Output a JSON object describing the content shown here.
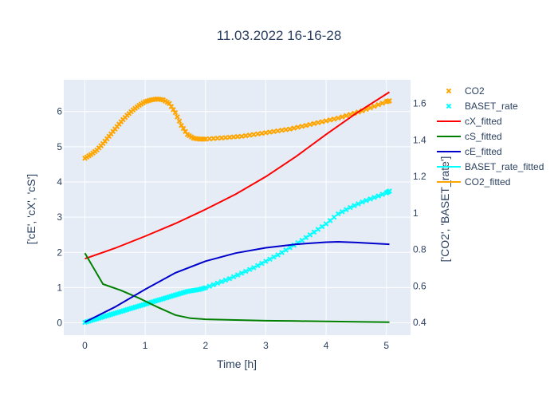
{
  "chart_data": {
    "type": "line",
    "title": "11.03.2022 16-16-28",
    "xlabel": "Time [h]",
    "ylabel_left": "['cE', 'cX', 'cS']",
    "ylabel_right": "['CO2', 'BASET_rate']",
    "xlim": [
      -0.35,
      5.4
    ],
    "ylim_left": [
      -0.35,
      6.9
    ],
    "ylim_right": [
      0.33,
      1.73
    ],
    "x_ticks": [
      0,
      1,
      2,
      3,
      4,
      5
    ],
    "y_left_ticks": [
      0,
      1,
      2,
      3,
      4,
      5,
      6
    ],
    "y_right_ticks": [
      0.4,
      0.6,
      0.8,
      1.0,
      1.2,
      1.4,
      1.6
    ],
    "y_right_tick_labels": [
      "0.4",
      "0.6",
      "0.8",
      "1",
      "1.2",
      "1.4",
      "1.6"
    ],
    "grid": true,
    "plot_bgcolor": "#e5ecf6",
    "legend_position": "right",
    "series": [
      {
        "name": "CO2",
        "mode": "markers",
        "marker": "x",
        "axis": "right",
        "color": "#ffa500",
        "x": [
          0,
          0.1,
          0.2,
          0.3,
          0.4,
          0.5,
          0.6,
          0.7,
          0.8,
          0.9,
          1.0,
          1.1,
          1.2,
          1.3,
          1.4,
          1.5,
          1.6,
          1.7,
          1.8,
          1.9,
          2.0,
          2.2,
          2.4,
          2.6,
          2.8,
          3.0,
          3.2,
          3.4,
          3.6,
          3.8,
          4.0,
          4.2,
          4.4,
          4.6,
          4.8,
          5.0,
          5.05
        ],
        "y": [
          1.3,
          1.32,
          1.345,
          1.38,
          1.42,
          1.46,
          1.5,
          1.535,
          1.565,
          1.59,
          1.61,
          1.62,
          1.625,
          1.62,
          1.6,
          1.55,
          1.48,
          1.43,
          1.41,
          1.405,
          1.405,
          1.41,
          1.415,
          1.42,
          1.43,
          1.44,
          1.45,
          1.46,
          1.475,
          1.49,
          1.505,
          1.52,
          1.54,
          1.56,
          1.585,
          1.61,
          1.615
        ]
      },
      {
        "name": "BASET_rate",
        "mode": "markers",
        "marker": "x",
        "axis": "right",
        "color": "#00ffff",
        "x": [
          0,
          0.1,
          0.2,
          0.3,
          0.4,
          0.5,
          0.6,
          0.7,
          0.8,
          0.9,
          1.0,
          1.1,
          1.2,
          1.3,
          1.4,
          1.5,
          1.6,
          1.7,
          1.8,
          1.9,
          2.0,
          2.2,
          2.4,
          2.6,
          2.8,
          3.0,
          3.2,
          3.4,
          3.6,
          3.8,
          4.0,
          4.2,
          4.4,
          4.6,
          4.8,
          5.0,
          5.05
        ],
        "y": [
          0.4,
          0.41,
          0.42,
          0.43,
          0.44,
          0.45,
          0.46,
          0.47,
          0.48,
          0.49,
          0.5,
          0.51,
          0.52,
          0.53,
          0.54,
          0.55,
          0.56,
          0.57,
          0.575,
          0.58,
          0.59,
          0.615,
          0.64,
          0.67,
          0.7,
          0.735,
          0.77,
          0.81,
          0.85,
          0.895,
          0.94,
          0.995,
          1.03,
          1.06,
          1.085,
          1.11,
          1.12
        ]
      },
      {
        "name": "cX_fitted",
        "mode": "lines",
        "axis": "left",
        "color": "#ff0000",
        "x": [
          0,
          0.5,
          1.0,
          1.5,
          2.0,
          2.5,
          3.0,
          3.5,
          4.0,
          4.5,
          5.05
        ],
        "y": [
          1.82,
          2.12,
          2.46,
          2.82,
          3.22,
          3.65,
          4.15,
          4.72,
          5.35,
          5.95,
          6.55
        ]
      },
      {
        "name": "cS_fitted",
        "mode": "lines",
        "axis": "left",
        "color": "#008000",
        "x": [
          0,
          0.3,
          0.6,
          0.9,
          1.2,
          1.5,
          1.75,
          2.0,
          2.5,
          3.0,
          3.5,
          4.0,
          4.5,
          5.05
        ],
        "y": [
          1.98,
          1.1,
          0.92,
          0.7,
          0.45,
          0.22,
          0.13,
          0.1,
          0.08,
          0.06,
          0.05,
          0.04,
          0.03,
          0.02
        ]
      },
      {
        "name": "cE_fitted",
        "mode": "lines",
        "axis": "left",
        "color": "#0000cd",
        "x": [
          0,
          0.5,
          1.0,
          1.5,
          2.0,
          2.5,
          3.0,
          3.5,
          4.0,
          4.2,
          4.5,
          5.05
        ],
        "y": [
          0.02,
          0.45,
          0.95,
          1.42,
          1.75,
          1.98,
          2.13,
          2.23,
          2.29,
          2.3,
          2.28,
          2.23
        ]
      },
      {
        "name": "BASET_rate_fitted",
        "mode": "lines",
        "axis": "right",
        "color": "#00ffff",
        "hidden": true,
        "x": [],
        "y": []
      },
      {
        "name": "CO2_fitted",
        "mode": "lines",
        "axis": "right",
        "color": "#ffa500",
        "hidden": true,
        "x": [],
        "y": []
      }
    ]
  }
}
